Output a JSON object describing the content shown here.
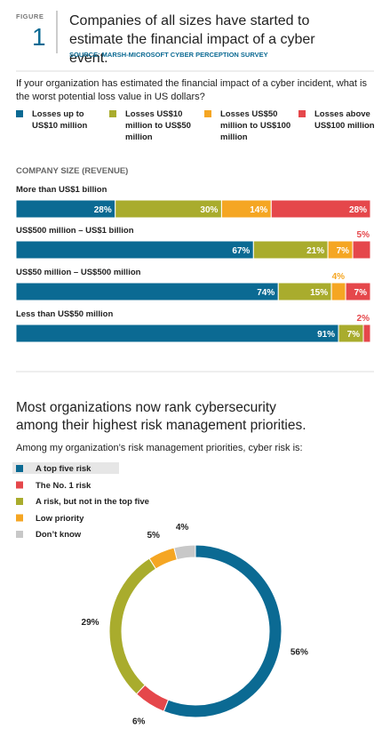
{
  "header": {
    "figure_label": "FIGURE",
    "figure_number": "1",
    "title": "Companies of all sizes have started to estimate the financial impact of a cyber event.",
    "source": "SOURCE: MARSH-MICROSOFT CYBER PERCEPTION SURVEY"
  },
  "chart_data": [
    {
      "type": "stacked-bar",
      "question": "If your organization has estimated the financial impact of a cyber incident, what is the worst potential loss value in US dollars?",
      "axis_label": "COMPANY SIZE (REVENUE)",
      "categories": [
        "More than US$1 billion",
        "US$500 million – US$1 billion",
        "US$50 million – US$500 million",
        "Less than US$50 million"
      ],
      "series": [
        {
          "name": "Losses up to US$10 million",
          "color": "#0b6a93",
          "values": [
            28,
            67,
            74,
            91
          ],
          "value_labels": [
            "28%",
            "67%",
            "74%",
            "91%"
          ]
        },
        {
          "name": "Losses US$10 million to US$50 million",
          "color": "#a9ac2d",
          "values": [
            30,
            21,
            15,
            7
          ],
          "value_labels": [
            "30%",
            "21%",
            "15%",
            "7%"
          ]
        },
        {
          "name": "Losses US$50 million to US$100 million",
          "color": "#f5a623",
          "values": [
            14,
            7,
            4,
            null
          ],
          "value_labels": [
            "14%",
            "7%",
            "4%",
            null
          ]
        },
        {
          "name": "Losses above US$100 million",
          "color": "#e5474b",
          "values": [
            28,
            5,
            7,
            2
          ],
          "value_labels": [
            "28%",
            "5%",
            "7%",
            "2%"
          ]
        }
      ]
    },
    {
      "type": "donut",
      "title": "Most organizations now rank cybersecurity among their highest risk management priorities.",
      "subtitle": "Among my organization’s risk management priorities, cyber risk is:",
      "categories": [
        "A top five risk",
        "The No. 1 risk",
        "A risk, but not in the top five",
        "Low priority",
        "Don’t know"
      ],
      "values": [
        56,
        6,
        29,
        5,
        4
      ],
      "value_labels": [
        "56%",
        "6%",
        "29%",
        "5%",
        "4%"
      ],
      "colors": [
        "#0b6a93",
        "#e5474b",
        "#a9ac2d",
        "#f5a623",
        "#c8c8c8"
      ]
    }
  ]
}
